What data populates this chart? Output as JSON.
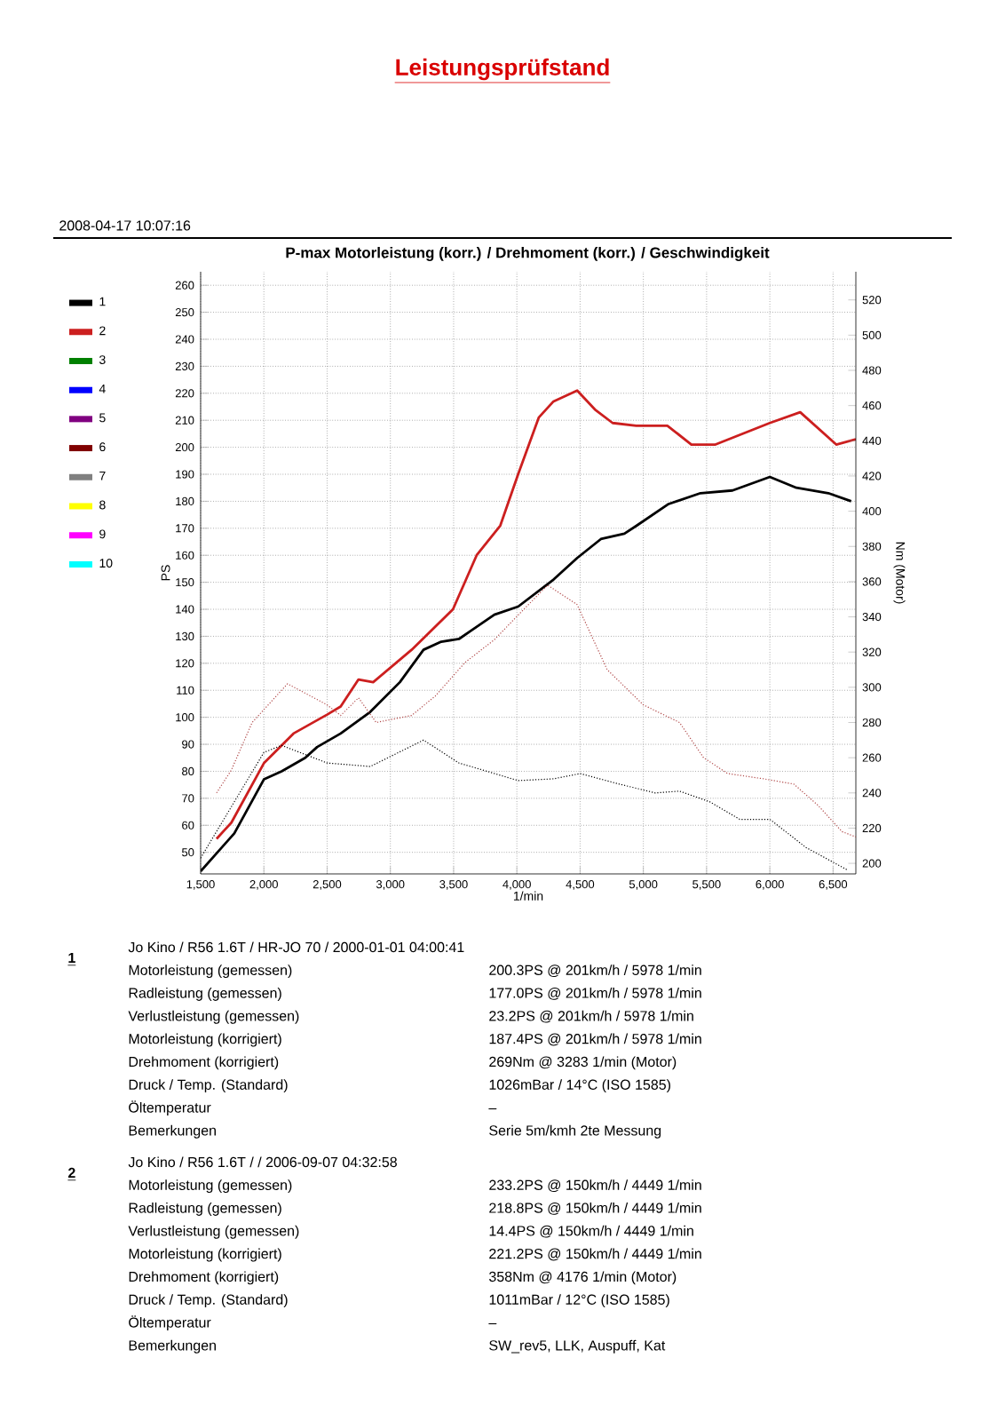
{
  "chart_data": {
    "type": "line",
    "title": "Leistungsprüfstand",
    "subtitle": "P-max Motorleistung (korr.) / Drehmoment (korr.) / Geschwindigkeit",
    "xlabel": "1/min",
    "ylabel": "PS",
    "y2label": "Nm (Motor)",
    "xlim": [
      1500,
      6680
    ],
    "ylim": [
      42,
      265
    ],
    "y2lim": [
      194,
      536
    ],
    "xticks": [
      {
        "value": 1500,
        "label": "1,500"
      },
      {
        "value": 2000,
        "label": "2,000"
      },
      {
        "value": 2500,
        "label": "2,500"
      },
      {
        "value": 3000,
        "label": "3,000"
      },
      {
        "value": 3500,
        "label": "3,500"
      },
      {
        "value": 4000,
        "label": "4,000"
      },
      {
        "value": 4500,
        "label": "4,500"
      },
      {
        "value": 5000,
        "label": "5,000"
      },
      {
        "value": 5500,
        "label": "5,500"
      },
      {
        "value": 6000,
        "label": "6,000"
      },
      {
        "value": 6500,
        "label": "6,500"
      }
    ],
    "yticks": [
      50,
      60,
      70,
      80,
      90,
      100,
      110,
      120,
      130,
      140,
      150,
      160,
      170,
      180,
      190,
      200,
      210,
      220,
      230,
      240,
      250,
      260
    ],
    "y2ticks": [
      200,
      220,
      240,
      260,
      280,
      300,
      320,
      340,
      360,
      380,
      400,
      420,
      440,
      460,
      480,
      500,
      520
    ],
    "grid": true,
    "legend": "left",
    "series": [
      {
        "name": "1",
        "color": "#000000",
        "line_style": "solid",
        "x": [
          1500,
          1766,
          2000,
          2140,
          2327,
          2421,
          2607,
          2841,
          3075,
          3262,
          3402,
          3542,
          3635,
          3822,
          4010,
          4290,
          4477,
          4664,
          4850,
          4948,
          5200,
          5452,
          5705,
          6000,
          6210,
          6462,
          6643
        ],
        "values": [
          43,
          57,
          77,
          80,
          85,
          89,
          94,
          102,
          113,
          125,
          128,
          129,
          132,
          138,
          141,
          151,
          159,
          166,
          168,
          171,
          179,
          183,
          184,
          189,
          185,
          183,
          180
        ]
      },
      {
        "name": "2",
        "color": "#cc1f1f",
        "line_style": "solid",
        "x": [
          1626,
          1743,
          2000,
          2234,
          2500,
          2607,
          2748,
          2864,
          3168,
          3495,
          3682,
          3869,
          4010,
          4173,
          4290,
          4477,
          4617,
          4757,
          4944,
          5190,
          5380,
          5570,
          6000,
          6240,
          6525,
          6680
        ],
        "values": [
          55,
          61,
          83,
          94,
          101,
          104,
          114,
          113,
          125,
          140,
          160,
          171,
          190,
          211,
          217,
          221,
          214,
          209,
          208,
          208,
          201,
          201,
          209,
          213,
          201,
          203
        ]
      },
      {
        "color": "#000000",
        "axis": "y2",
        "line_style": "dotted",
        "x": [
          1500,
          2000,
          2140,
          2500,
          2841,
          3262,
          3542,
          4010,
          4290,
          4500,
          4810,
          5095,
          5286,
          5524,
          5762,
          6000,
          6286,
          6619
        ],
        "values": [
          203,
          263,
          267,
          257,
          255,
          270,
          257,
          247,
          248,
          251,
          245,
          240,
          241,
          235,
          225,
          225,
          209,
          196
        ]
      },
      {
        "color": "#b04848",
        "axis": "y2",
        "line_style": "dotted",
        "x": [
          1626,
          1743,
          1907,
          2187,
          2500,
          2607,
          2748,
          2888,
          3168,
          3355,
          3589,
          3822,
          4010,
          4243,
          4476,
          4714,
          5000,
          5286,
          5476,
          5667,
          5952,
          6190,
          6380,
          6571,
          6680
        ],
        "values": [
          240,
          253,
          280,
          302,
          290,
          284,
          294,
          280,
          284,
          295,
          314,
          327,
          341,
          358,
          347,
          310,
          290,
          280,
          260,
          251,
          248,
          245,
          233,
          218,
          215
        ]
      },
      {
        "name": "3",
        "color": "#008000"
      },
      {
        "name": "4",
        "color": "#0000ff"
      },
      {
        "name": "5",
        "color": "#800080"
      },
      {
        "name": "6",
        "color": "#800000"
      },
      {
        "name": "7",
        "color": "#808080"
      },
      {
        "name": "8",
        "color": "#ffff00"
      },
      {
        "name": "9",
        "color": "#ff00ff"
      },
      {
        "name": "10",
        "color": "#00ffff"
      }
    ],
    "annotations": [
      "2008-04-17 10:07:16",
      "1",
      "Jo Kino / R56 1.6T / HR-JO 70 / 2000-01-01 04:00:41",
      "Motorleistung (gemessen)",
      "200.3PS @ 201km/h / 5978 1/min",
      "Radleistung (gemessen)",
      "177.0PS @ 201km/h / 5978 1/min",
      "Verlustleistung (gemessen)",
      "23.2PS @ 201km/h / 5978 1/min",
      "Motorleistung (korrigiert)",
      "187.4PS @ 201km/h / 5978 1/min",
      "Drehmoment (korrigiert)",
      "269Nm @ 3283 1/min (Motor)",
      "Druck / Temp. (Standard)",
      "1026mBar / 14°C   (ISO 1585)",
      "Öltemperatur",
      "–",
      "Bemerkungen",
      "Serie 5m/kmh 2te Messung",
      "2",
      "Jo Kino / R56 1.6T / / 2006-09-07 04:32:58",
      "Motorleistung (gemessen)",
      "233.2PS @ 150km/h / 4449 1/min",
      "Radleistung (gemessen)",
      "218.8PS @ 150km/h / 4449 1/min",
      "Verlustleistung (gemessen)",
      "14.4PS @ 150km/h / 4449 1/min",
      "Motorleistung (korrigiert)",
      "221.2PS @ 150km/h / 4449 1/min",
      "Drehmoment (korrigiert)",
      "358Nm @ 4176 1/min (Motor)",
      "Druck / Temp. (Standard)",
      "1011mBar / 12°C   (ISO 1585)",
      "Öltemperatur",
      "–",
      "Bemerkungen",
      "SW_rev5, LLK, Auspuff, Kat"
    ]
  }
}
